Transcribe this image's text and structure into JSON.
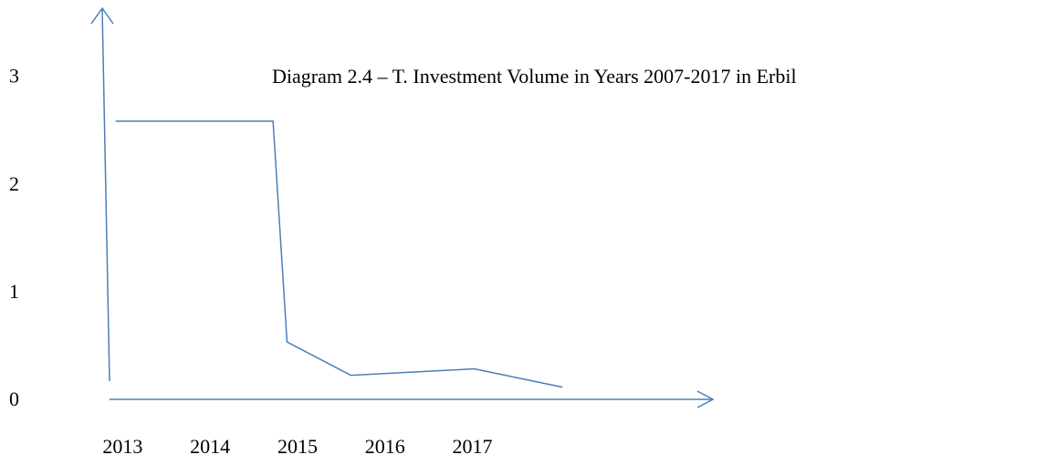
{
  "chart_data": {
    "type": "line",
    "title": "Diagram 2.4 – T. Investment Volume in Years 2007-2017 in Erbil",
    "x": [
      2012.92,
      2014.72,
      2014.88,
      2015.61,
      2017.02,
      2018.03
    ],
    "series": [
      {
        "color": "#4a7ebb",
        "values": [
          2.6,
          2.6,
          0.55,
          0.24,
          0.3,
          0.13
        ]
      }
    ],
    "xlim": [
      2012.85,
      2019.74
    ],
    "xticks": [
      2013,
      2014,
      2015,
      2016,
      2017
    ],
    "ylim": [
      0,
      3.64
    ],
    "yticks": [
      0,
      1,
      2,
      3
    ]
  }
}
